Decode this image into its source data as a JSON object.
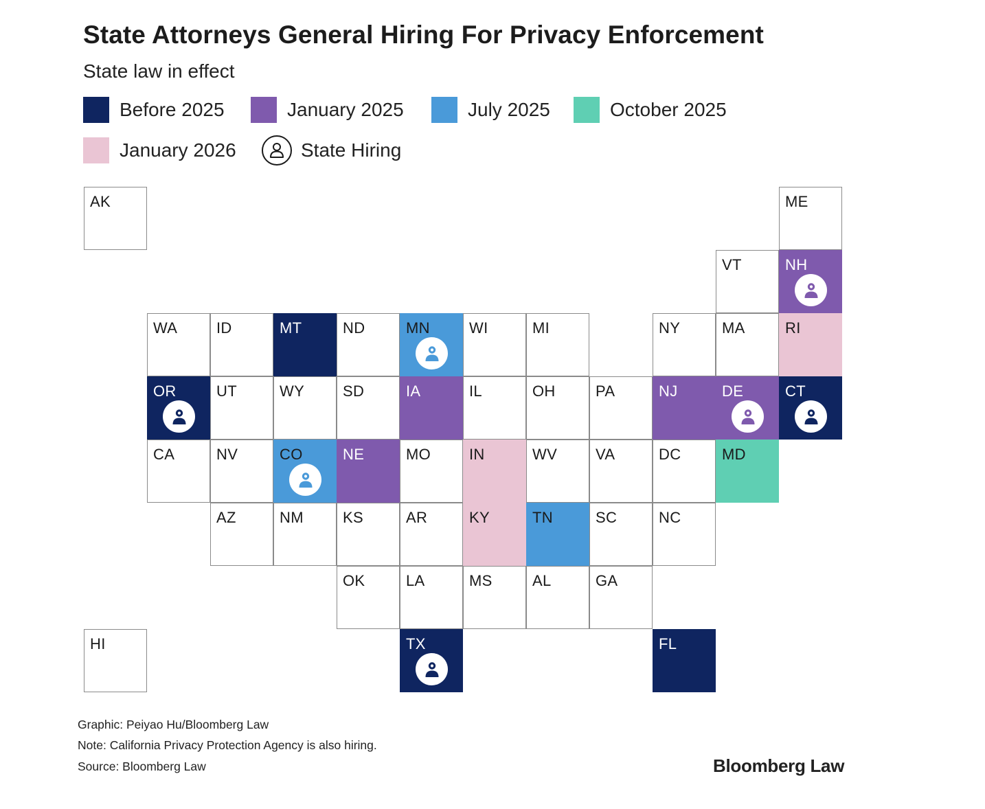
{
  "title": "State Attorneys General Hiring For Privacy Enforcement",
  "subtitle": "State law in effect",
  "colors": {
    "before_2025": "#0f2560",
    "jan_2025": "#7f5aad",
    "jul_2025": "#4a9ad9",
    "oct_2025": "#5fcfb3",
    "jan_2026": "#eac5d4",
    "none": "#ffffff"
  },
  "legend": {
    "before_2025": "Before 2025",
    "jan_2025": "January 2025",
    "jul_2025": "July 2025",
    "oct_2025": "October 2025",
    "jan_2026": "January 2026",
    "hiring": "State Hiring"
  },
  "states": [
    {
      "abbr": "AK",
      "cat": "none",
      "hiring": false
    },
    {
      "abbr": "ME",
      "cat": "none",
      "hiring": false
    },
    {
      "abbr": "VT",
      "cat": "none",
      "hiring": false
    },
    {
      "abbr": "NH",
      "cat": "jan_2025",
      "hiring": true
    },
    {
      "abbr": "WA",
      "cat": "none",
      "hiring": false
    },
    {
      "abbr": "ID",
      "cat": "none",
      "hiring": false
    },
    {
      "abbr": "MT",
      "cat": "before_2025",
      "hiring": false
    },
    {
      "abbr": "ND",
      "cat": "none",
      "hiring": false
    },
    {
      "abbr": "MN",
      "cat": "jul_2025",
      "hiring": true
    },
    {
      "abbr": "WI",
      "cat": "none",
      "hiring": false
    },
    {
      "abbr": "MI",
      "cat": "none",
      "hiring": false
    },
    {
      "abbr": "NY",
      "cat": "none",
      "hiring": false
    },
    {
      "abbr": "MA",
      "cat": "none",
      "hiring": false
    },
    {
      "abbr": "RI",
      "cat": "jan_2026",
      "hiring": false
    },
    {
      "abbr": "OR",
      "cat": "before_2025",
      "hiring": true
    },
    {
      "abbr": "UT",
      "cat": "none",
      "hiring": false
    },
    {
      "abbr": "WY",
      "cat": "none",
      "hiring": false
    },
    {
      "abbr": "SD",
      "cat": "none",
      "hiring": false
    },
    {
      "abbr": "IA",
      "cat": "jan_2025",
      "hiring": false
    },
    {
      "abbr": "IL",
      "cat": "none",
      "hiring": false
    },
    {
      "abbr": "OH",
      "cat": "none",
      "hiring": false
    },
    {
      "abbr": "PA",
      "cat": "none",
      "hiring": false
    },
    {
      "abbr": "NJ",
      "cat": "jan_2025",
      "hiring": false
    },
    {
      "abbr": "DE",
      "cat": "jan_2025",
      "hiring": true
    },
    {
      "abbr": "CT",
      "cat": "before_2025",
      "hiring": true
    },
    {
      "abbr": "CA",
      "cat": "none",
      "hiring": false
    },
    {
      "abbr": "NV",
      "cat": "none",
      "hiring": false
    },
    {
      "abbr": "CO",
      "cat": "jul_2025",
      "hiring": true
    },
    {
      "abbr": "NE",
      "cat": "jan_2025",
      "hiring": false
    },
    {
      "abbr": "MO",
      "cat": "none",
      "hiring": false
    },
    {
      "abbr": "IN",
      "cat": "jan_2026",
      "hiring": false
    },
    {
      "abbr": "WV",
      "cat": "none",
      "hiring": false
    },
    {
      "abbr": "VA",
      "cat": "none",
      "hiring": false
    },
    {
      "abbr": "DC",
      "cat": "none",
      "hiring": false
    },
    {
      "abbr": "MD",
      "cat": "oct_2025",
      "hiring": false
    },
    {
      "abbr": "AZ",
      "cat": "none",
      "hiring": false
    },
    {
      "abbr": "NM",
      "cat": "none",
      "hiring": false
    },
    {
      "abbr": "KS",
      "cat": "none",
      "hiring": false
    },
    {
      "abbr": "AR",
      "cat": "none",
      "hiring": false
    },
    {
      "abbr": "KY",
      "cat": "jan_2026",
      "hiring": false
    },
    {
      "abbr": "TN",
      "cat": "jul_2025",
      "hiring": false
    },
    {
      "abbr": "SC",
      "cat": "none",
      "hiring": false
    },
    {
      "abbr": "NC",
      "cat": "none",
      "hiring": false
    },
    {
      "abbr": "OK",
      "cat": "none",
      "hiring": false
    },
    {
      "abbr": "LA",
      "cat": "none",
      "hiring": false
    },
    {
      "abbr": "MS",
      "cat": "none",
      "hiring": false
    },
    {
      "abbr": "AL",
      "cat": "none",
      "hiring": false
    },
    {
      "abbr": "GA",
      "cat": "none",
      "hiring": false
    },
    {
      "abbr": "HI",
      "cat": "none",
      "hiring": false
    },
    {
      "abbr": "TX",
      "cat": "before_2025",
      "hiring": true
    },
    {
      "abbr": "FL",
      "cat": "before_2025",
      "hiring": false
    }
  ],
  "footer": {
    "graphic": "Graphic: Peiyao Hu/Bloomberg Law",
    "note": "Note: California Privacy Protection Agency is also hiring.",
    "source": "Source: Bloomberg Law"
  },
  "brand": "Bloomberg Law"
}
